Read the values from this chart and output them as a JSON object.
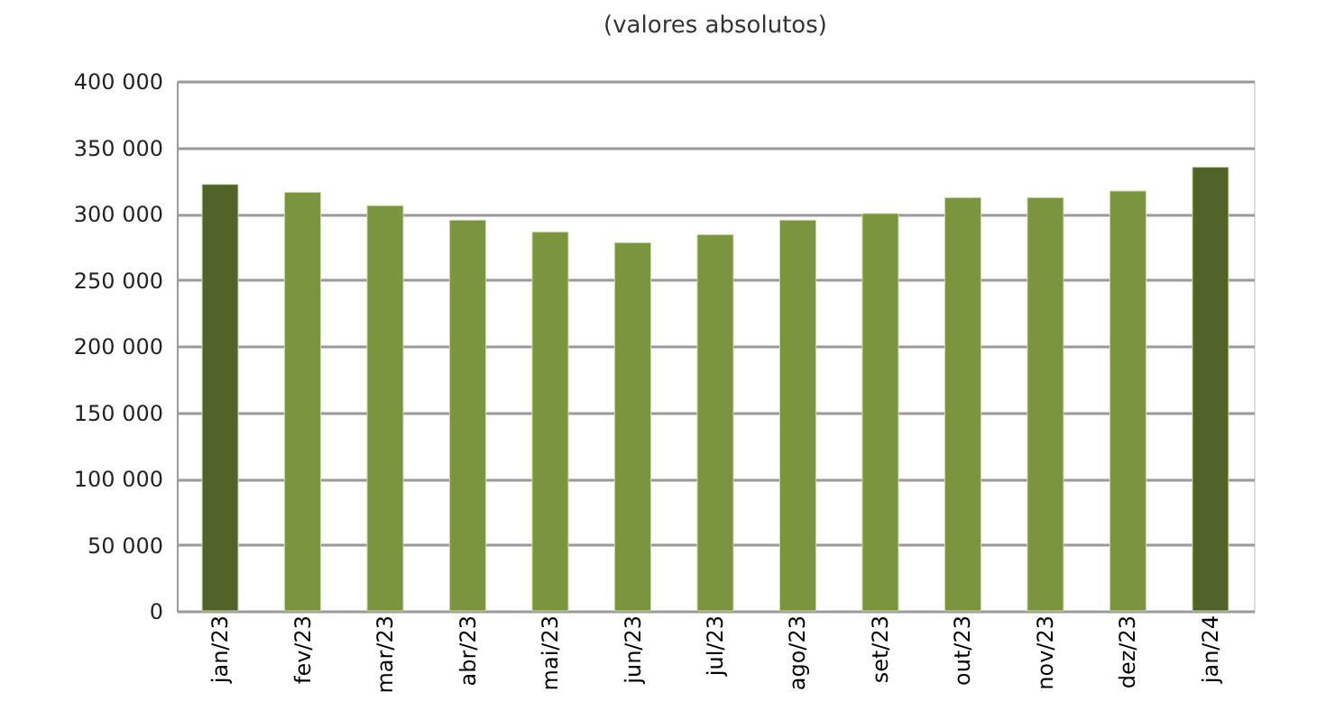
{
  "chart_data": {
    "type": "bar",
    "title": "(valores absolutos)",
    "categories": [
      "jan/23",
      "fev/23",
      "mar/23",
      "abr/23",
      "mai/23",
      "jun/23",
      "jul/23",
      "ago/23",
      "set/23",
      "out/23",
      "nov/23",
      "dez/23",
      "jan/24"
    ],
    "values": [
      322000,
      316000,
      306000,
      295000,
      286000,
      278000,
      284000,
      295000,
      300000,
      312000,
      312000,
      317000,
      335000
    ],
    "colors": [
      "#526329",
      "#7a953d",
      "#7a953d",
      "#7a953d",
      "#7a953d",
      "#7a953d",
      "#7a953d",
      "#7a953d",
      "#7a953d",
      "#7a953d",
      "#7a953d",
      "#7a953d",
      "#526329"
    ],
    "ylim": [
      0,
      400000
    ],
    "yticks": [
      0,
      50000,
      100000,
      150000,
      200000,
      250000,
      300000,
      350000,
      400000
    ],
    "grid": "y"
  }
}
